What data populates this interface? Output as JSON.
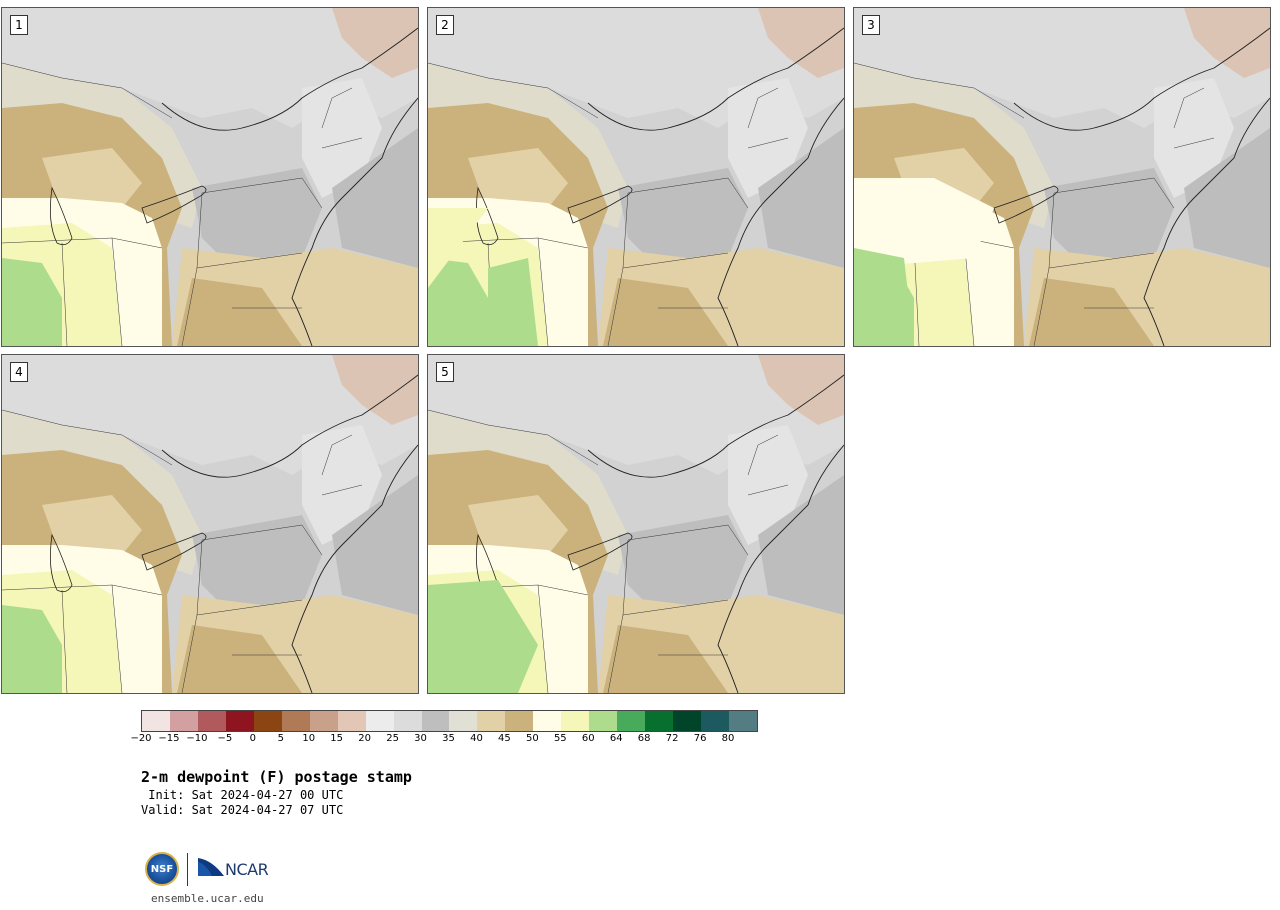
{
  "panels": [
    {
      "label": "1"
    },
    {
      "label": "2"
    },
    {
      "label": "3"
    },
    {
      "label": "4"
    },
    {
      "label": "5"
    }
  ],
  "colorbar": {
    "colors": [
      "#f2e4e3",
      "#d3a0a2",
      "#b05a5e",
      "#8e1520",
      "#8b4513",
      "#b07a57",
      "#c9a08a",
      "#e2c6b6",
      "#ececec",
      "#dcdcdc",
      "#bebebe",
      "#e0e0d4",
      "#e2d1a6",
      "#cbb27c",
      "#fffde8",
      "#f4f7b8",
      "#acdc8c",
      "#48ab5c",
      "#07702e",
      "#00452a",
      "#1d5a60",
      "#537d83"
    ],
    "ticks": [
      "−20",
      "−15",
      "−10",
      "−5",
      "0",
      "5",
      "10",
      "15",
      "20",
      "25",
      "30",
      "35",
      "40",
      "45",
      "50",
      "55",
      "60",
      "64",
      "68",
      "72",
      "76",
      "80"
    ]
  },
  "title": {
    "main": "2-m dewpoint (F) postage stamp",
    "init": " Init: Sat 2024-04-27 00 UTC",
    "valid": "Valid: Sat 2024-04-27 07 UTC"
  },
  "logos": {
    "nsf": "NSF",
    "ncar": "NCAR",
    "site": "ensemble.ucar.edu"
  }
}
